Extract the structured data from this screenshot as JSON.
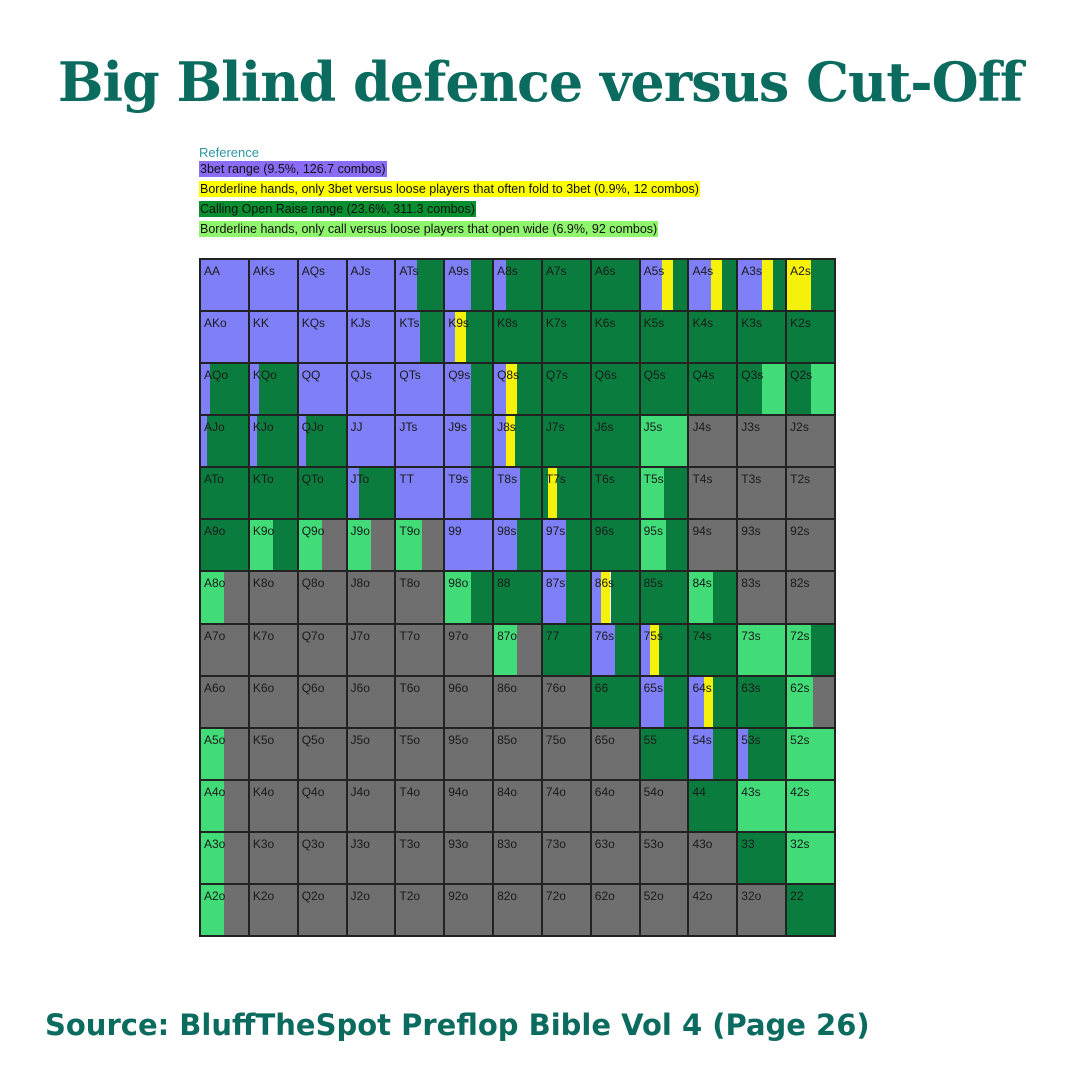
{
  "title": "Big Blind defence versus Cut-Off",
  "source": "Source: BluffTheSpot Preflop Bible Vol 4 (Page 26)",
  "legend": {
    "heading": "Reference",
    "items": [
      {
        "key": "P",
        "label": "3bet range (9.5%, 126.7 combos)",
        "color": "#8a6cf7"
      },
      {
        "key": "Y",
        "label": "Borderline hands, only 3bet versus loose players that often fold to 3bet (0.9%, 12 combos)",
        "color": "#ffff00"
      },
      {
        "key": "G",
        "label": "Calling Open Raise range (23.6%, 311.3 combos)",
        "color": "#0a8f30"
      },
      {
        "key": "L",
        "label": "Borderline hands, only call versus loose players that open wide (6.9%, 92 combos)",
        "color": "#8ff56c"
      }
    ]
  },
  "colors": {
    "P": "#7f7ff7",
    "Y": "#f6f10a",
    "G": "#0a7d3e",
    "L": "#41db77",
    "F": "#6f6f6f",
    "title": "#0b6b5f"
  },
  "grid": {
    "rows": [
      [
        "AA",
        "AKs",
        "AQs",
        "AJs",
        "ATs",
        "A9s",
        "A8s",
        "A7s",
        "A6s",
        "A5s",
        "A4s",
        "A3s",
        "A2s"
      ],
      [
        "AKo",
        "KK",
        "KQs",
        "KJs",
        "KTs",
        "K9s",
        "K8s",
        "K7s",
        "K6s",
        "K5s",
        "K4s",
        "K3s",
        "K2s"
      ],
      [
        "AQo",
        "KQo",
        "QQ",
        "QJs",
        "QTs",
        "Q9s",
        "Q8s",
        "Q7s",
        "Q6s",
        "Q5s",
        "Q4s",
        "Q3s",
        "Q2s"
      ],
      [
        "AJo",
        "KJo",
        "QJo",
        "JJ",
        "JTs",
        "J9s",
        "J8s",
        "J7s",
        "J6s",
        "J5s",
        "J4s",
        "J3s",
        "J2s"
      ],
      [
        "ATo",
        "KTo",
        "QTo",
        "JTo",
        "TT",
        "T9s",
        "T8s",
        "T7s",
        "T6s",
        "T5s",
        "T4s",
        "T3s",
        "T2s"
      ],
      [
        "A9o",
        "K9o",
        "Q9o",
        "J9o",
        "T9o",
        "99",
        "98s",
        "97s",
        "96s",
        "95s",
        "94s",
        "93s",
        "92s"
      ],
      [
        "A8o",
        "K8o",
        "Q8o",
        "J8o",
        "T8o",
        "98o",
        "88",
        "87s",
        "86s",
        "85s",
        "84s",
        "83s",
        "82s"
      ],
      [
        "A7o",
        "K7o",
        "Q7o",
        "J7o",
        "T7o",
        "97o",
        "87o",
        "77",
        "76s",
        "75s",
        "74s",
        "73s",
        "72s"
      ],
      [
        "A6o",
        "K6o",
        "Q6o",
        "J6o",
        "T6o",
        "96o",
        "86o",
        "76o",
        "66",
        "65s",
        "64s",
        "63s",
        "62s"
      ],
      [
        "A5o",
        "K5o",
        "Q5o",
        "J5o",
        "T5o",
        "95o",
        "85o",
        "75o",
        "65o",
        "55",
        "54s",
        "53s",
        "52s"
      ],
      [
        "A4o",
        "K4o",
        "Q4o",
        "J4o",
        "T4o",
        "94o",
        "84o",
        "74o",
        "64o",
        "54o",
        "44",
        "43s",
        "42s"
      ],
      [
        "A3o",
        "K3o",
        "Q3o",
        "J3o",
        "T3o",
        "93o",
        "83o",
        "73o",
        "63o",
        "53o",
        "43o",
        "33",
        "32s"
      ],
      [
        "A2o",
        "K2o",
        "Q2o",
        "J2o",
        "T2o",
        "92o",
        "82o",
        "72o",
        "62o",
        "52o",
        "42o",
        "32o",
        "22"
      ]
    ],
    "mix": [
      [
        "P1",
        "P1",
        "P1",
        "P1",
        "P0.45 G0.55",
        "P0.55 G0.45",
        "P0.25 G0.75",
        "G1",
        "G1",
        "P0.45 Y0.25 G0.3",
        "P0.45 Y0.25 G0.3",
        "P0.5 Y0.25 G0.25",
        "Y0.5 G0.5"
      ],
      [
        "P1",
        "P1",
        "P1",
        "P1",
        "P0.5 G0.5",
        "P0.2 Y0.25 G0.55",
        "G1",
        "G1",
        "G1",
        "G1",
        "G1",
        "G1",
        "G1"
      ],
      [
        "P0.2 G0.8",
        "P0.2 G0.8",
        "P1",
        "P1",
        "P1",
        "P0.55 G0.45",
        "P0.25 Y0.25 G0.5",
        "G1",
        "G1",
        "G1",
        "G1",
        "G0.5 L0.5",
        "G0.5 L0.5"
      ],
      [
        "P0.12 G0.88",
        "P0.15 G0.85",
        "P0.15 G0.85",
        "P1",
        "P1",
        "P0.55 G0.45",
        "P0.25 Y0.2 G0.55",
        "G1",
        "G1",
        "L1",
        "F1",
        "F1",
        "F1"
      ],
      [
        "G1",
        "G1",
        "G1",
        "P0.25 G0.75",
        "P1",
        "P0.55 G0.45",
        "P0.55 G0.45",
        "G0.1 Y0.2 G0.7",
        "G1",
        "L0.5 G0.5",
        "F1",
        "F1",
        "F1"
      ],
      [
        "G1",
        "L0.5 G0.5",
        "L0.5 F0.5",
        "L0.5 F0.5",
        "L0.55 F0.45",
        "P1",
        "P0.5 G0.5",
        "P0.5 G0.5",
        "G1",
        "L0.55 G0.45",
        "F1",
        "F1",
        "F1"
      ],
      [
        "L0.5 F0.5",
        "F1",
        "F1",
        "F1",
        "F1",
        "L0.55 G0.45",
        "G1",
        "P0.5 G0.5",
        "P0.2 Y0.2 G0.6",
        "G1",
        "L0.5 G0.5",
        "F1",
        "F1"
      ],
      [
        "F1",
        "F1",
        "F1",
        "F1",
        "F1",
        "F1",
        "L0.5 F0.5",
        "G1",
        "P0.5 G0.5",
        "P0.2 Y0.2 G0.6",
        "G1",
        "L1",
        "L0.5 G0.5"
      ],
      [
        "F1",
        "F1",
        "F1",
        "F1",
        "F1",
        "F1",
        "F1",
        "F1",
        "G1",
        "P0.5 G0.5",
        "P0.3 Y0.2 G0.5",
        "G1",
        "L0.55 F0.45"
      ],
      [
        "L0.5 F0.5",
        "F1",
        "F1",
        "F1",
        "F1",
        "F1",
        "F1",
        "F1",
        "F1",
        "G1",
        "P0.5 G0.5",
        "P0.2 G0.8",
        "L1"
      ],
      [
        "L0.5 F0.5",
        "F1",
        "F1",
        "F1",
        "F1",
        "F1",
        "F1",
        "F1",
        "F1",
        "F1",
        "G1",
        "L1",
        "L1"
      ],
      [
        "L0.5 F0.5",
        "F1",
        "F1",
        "F1",
        "F1",
        "F1",
        "F1",
        "F1",
        "F1",
        "F1",
        "F1",
        "G1",
        "L1"
      ],
      [
        "L0.5 F0.5",
        "F1",
        "F1",
        "F1",
        "F1",
        "F1",
        "F1",
        "F1",
        "F1",
        "F1",
        "F1",
        "F1",
        "G1"
      ]
    ]
  }
}
